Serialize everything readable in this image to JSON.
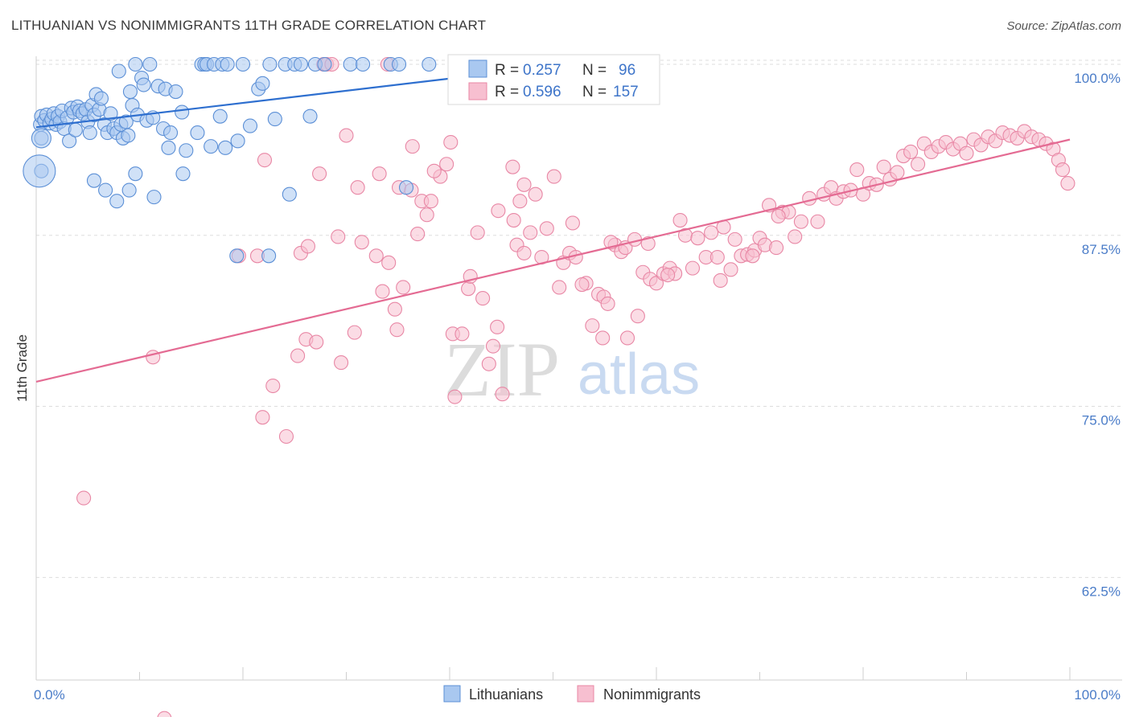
{
  "title": "LITHUANIAN VS NONIMMIGRANTS 11TH GRADE CORRELATION CHART",
  "source": "Source: ZipAtlas.com",
  "colors": {
    "blue_fill": "#a9c8f0",
    "blue_stroke": "#5b8fd6",
    "blue_line": "#2e6fcf",
    "pink_fill": "#f7bfd0",
    "pink_stroke": "#e887a5",
    "pink_line": "#e46b93",
    "tick_text": "#4a7cc8",
    "grid": "#dddddd"
  },
  "legend": {
    "rows": [
      {
        "r_label": "R =",
        "r_value": "0.257",
        "n_label": "N =",
        "n_value": "96",
        "series": "Lithuanians"
      },
      {
        "r_label": "R =",
        "r_value": "0.596",
        "n_label": "N =",
        "n_value": "157",
        "series": "Nonimmigrants"
      }
    ]
  },
  "watermark": {
    "zip": "ZIP",
    "atlas": "atlas"
  },
  "chart_data": {
    "type": "scatter",
    "title": "LITHUANIAN VS NONIMMIGRANTS 11TH GRADE CORRELATION CHART",
    "xlabel": "",
    "ylabel": "11th Grade",
    "xlim": [
      0,
      100
    ],
    "ylim": [
      55,
      100
    ],
    "x_tick_labels": [
      "0.0%",
      "100.0%"
    ],
    "y_ticks": [
      {
        "value": 100.0,
        "label": "100.0%"
      },
      {
        "value": 87.5,
        "label": "87.5%"
      },
      {
        "value": 75.0,
        "label": "75.0%"
      },
      {
        "value": 62.5,
        "label": "62.5%"
      }
    ],
    "grid": true,
    "legend_position": "top-center",
    "bottom_legend": [
      "Lithuanians",
      "Nonimmigrants"
    ],
    "series": [
      {
        "name": "Lithuanians",
        "r": 0.257,
        "n": 96,
        "trend": [
          [
            0,
            95.4
          ],
          [
            40.5,
            99.0
          ]
        ],
        "points": [
          [
            0.4,
            95.6
          ],
          [
            0.5,
            96.2
          ],
          [
            0.8,
            95.9
          ],
          [
            1.0,
            96.3
          ],
          [
            1.3,
            95.7
          ],
          [
            1.5,
            96.0
          ],
          [
            1.7,
            96.4
          ],
          [
            1.9,
            95.6
          ],
          [
            2.1,
            96.2
          ],
          [
            2.3,
            95.8
          ],
          [
            2.5,
            96.6
          ],
          [
            2.7,
            95.3
          ],
          [
            3.0,
            96.1
          ],
          [
            3.2,
            94.4
          ],
          [
            3.4,
            96.8
          ],
          [
            3.6,
            96.5
          ],
          [
            3.8,
            95.2
          ],
          [
            4.0,
            96.9
          ],
          [
            4.2,
            96.6
          ],
          [
            4.5,
            96.4
          ],
          [
            4.8,
            96.7
          ],
          [
            5.0,
            95.8
          ],
          [
            5.2,
            95.0
          ],
          [
            5.4,
            97.0
          ],
          [
            5.6,
            96.3
          ],
          [
            5.8,
            97.8
          ],
          [
            6.1,
            96.7
          ],
          [
            6.3,
            97.5
          ],
          [
            6.6,
            95.6
          ],
          [
            6.9,
            95.0
          ],
          [
            7.2,
            96.4
          ],
          [
            7.5,
            95.3
          ],
          [
            7.8,
            95.0
          ],
          [
            8.0,
            99.5
          ],
          [
            8.2,
            95.6
          ],
          [
            8.4,
            94.6
          ],
          [
            8.7,
            95.8
          ],
          [
            8.9,
            94.8
          ],
          [
            9.1,
            98.0
          ],
          [
            9.3,
            97.0
          ],
          [
            9.6,
            100
          ],
          [
            9.8,
            96.3
          ],
          [
            10.2,
            99.0
          ],
          [
            10.4,
            98.5
          ],
          [
            10.7,
            95.9
          ],
          [
            11.0,
            100
          ],
          [
            11.3,
            96.1
          ],
          [
            11.8,
            98.4
          ],
          [
            12.3,
            95.3
          ],
          [
            12.5,
            98.2
          ],
          [
            12.8,
            93.9
          ],
          [
            13.0,
            95.0
          ],
          [
            13.5,
            98.0
          ],
          [
            14.1,
            96.5
          ],
          [
            14.5,
            93.7
          ],
          [
            15.6,
            95.0
          ],
          [
            16.0,
            100
          ],
          [
            16.3,
            100
          ],
          [
            16.5,
            100
          ],
          [
            16.9,
            94.0
          ],
          [
            17.2,
            100
          ],
          [
            18.0,
            100
          ],
          [
            18.5,
            100
          ],
          [
            19.5,
            94.4
          ],
          [
            20.7,
            95.5
          ],
          [
            21.5,
            98.2
          ],
          [
            21.9,
            98.6
          ],
          [
            22.6,
            100
          ],
          [
            23.1,
            96.0
          ],
          [
            24.1,
            100
          ],
          [
            25.0,
            100
          ],
          [
            25.6,
            100
          ],
          [
            26.5,
            96.2
          ],
          [
            27.0,
            100
          ],
          [
            27.9,
            100
          ],
          [
            30.4,
            100
          ],
          [
            31.6,
            100
          ],
          [
            34.3,
            100
          ],
          [
            35.1,
            100
          ],
          [
            35.8,
            91.0
          ],
          [
            38.0,
            100
          ],
          [
            0.5,
            94.6
          ],
          [
            0.5,
            92.2
          ],
          [
            5.6,
            91.5
          ],
          [
            6.7,
            90.8
          ],
          [
            7.8,
            90.0
          ],
          [
            9.0,
            90.8
          ],
          [
            9.6,
            92.0
          ],
          [
            11.4,
            90.3
          ],
          [
            19.4,
            86.0
          ],
          [
            18.3,
            93.9
          ],
          [
            22.5,
            86.0
          ],
          [
            17.8,
            96.2
          ],
          [
            24.5,
            90.5
          ],
          [
            20.0,
            100
          ],
          [
            14.2,
            92.0
          ]
        ],
        "large_points": [
          [
            0.3,
            92.2
          ],
          [
            0.5,
            94.6
          ]
        ]
      },
      {
        "name": "Nonimmigrants",
        "r": 0.596,
        "n": 157,
        "trend": [
          [
            0,
            76.8
          ],
          [
            100,
            94.5
          ]
        ],
        "points": [
          [
            4.6,
            68.3
          ],
          [
            11.3,
            78.6
          ],
          [
            12.4,
            52.2
          ],
          [
            19.6,
            86.0
          ],
          [
            21.4,
            86.0
          ],
          [
            21.9,
            74.2
          ],
          [
            22.9,
            76.5
          ],
          [
            23.4,
            50.5
          ],
          [
            24.2,
            72.8
          ],
          [
            25.3,
            78.7
          ],
          [
            25.6,
            86.2
          ],
          [
            26.1,
            79.9
          ],
          [
            26.3,
            86.7
          ],
          [
            27.1,
            79.7
          ],
          [
            27.4,
            92.0
          ],
          [
            29.2,
            87.4
          ],
          [
            29.5,
            78.2
          ],
          [
            30.0,
            94.8
          ],
          [
            30.8,
            80.4
          ],
          [
            31.1,
            91.0
          ],
          [
            31.5,
            87.0
          ],
          [
            32.9,
            86.0
          ],
          [
            33.5,
            83.4
          ],
          [
            34.1,
            85.5
          ],
          [
            34.7,
            82.1
          ],
          [
            34.9,
            80.6
          ],
          [
            35.1,
            91.0
          ],
          [
            35.5,
            83.7
          ],
          [
            36.3,
            90.8
          ],
          [
            36.9,
            87.6
          ],
          [
            37.3,
            90.0
          ],
          [
            37.8,
            89.0
          ],
          [
            38.2,
            90.0
          ],
          [
            39.1,
            91.8
          ],
          [
            39.7,
            92.7
          ],
          [
            40.1,
            94.3
          ],
          [
            40.3,
            80.3
          ],
          [
            40.5,
            75.7
          ],
          [
            41.2,
            80.3
          ],
          [
            41.8,
            83.6
          ],
          [
            42.0,
            84.5
          ],
          [
            42.7,
            87.7
          ],
          [
            43.2,
            82.9
          ],
          [
            43.8,
            78.1
          ],
          [
            44.2,
            79.4
          ],
          [
            44.7,
            89.3
          ],
          [
            45.1,
            75.9
          ],
          [
            46.2,
            88.6
          ],
          [
            46.5,
            86.8
          ],
          [
            46.8,
            90.0
          ],
          [
            47.2,
            91.2
          ],
          [
            47.8,
            87.7
          ],
          [
            48.3,
            90.5
          ],
          [
            48.9,
            85.9
          ],
          [
            49.4,
            88.0
          ],
          [
            50.1,
            91.8
          ],
          [
            50.6,
            83.7
          ],
          [
            51.0,
            85.5
          ],
          [
            51.6,
            86.2
          ],
          [
            51.9,
            88.4
          ],
          [
            52.2,
            85.9
          ],
          [
            53.2,
            84.0
          ],
          [
            53.8,
            80.9
          ],
          [
            54.4,
            83.2
          ],
          [
            54.8,
            80.0
          ],
          [
            54.9,
            83.0
          ],
          [
            55.3,
            82.5
          ],
          [
            56.0,
            86.8
          ],
          [
            56.6,
            86.3
          ],
          [
            57.0,
            86.6
          ],
          [
            57.2,
            80.0
          ],
          [
            57.9,
            87.2
          ],
          [
            58.2,
            81.6
          ],
          [
            58.7,
            84.8
          ],
          [
            59.4,
            84.3
          ],
          [
            60.0,
            84.0
          ],
          [
            60.7,
            84.7
          ],
          [
            61.3,
            85.1
          ],
          [
            61.8,
            84.7
          ],
          [
            62.3,
            88.6
          ],
          [
            62.8,
            87.5
          ],
          [
            63.5,
            85.1
          ],
          [
            64.0,
            87.3
          ],
          [
            64.8,
            85.9
          ],
          [
            65.3,
            87.7
          ],
          [
            65.9,
            85.9
          ],
          [
            66.5,
            88.1
          ],
          [
            67.2,
            85.0
          ],
          [
            67.6,
            87.2
          ],
          [
            68.2,
            86.0
          ],
          [
            68.8,
            86.1
          ],
          [
            69.5,
            86.4
          ],
          [
            70.0,
            87.3
          ],
          [
            70.5,
            86.8
          ],
          [
            70.9,
            89.7
          ],
          [
            71.6,
            86.6
          ],
          [
            72.2,
            89.2
          ],
          [
            72.8,
            89.2
          ],
          [
            73.4,
            87.4
          ],
          [
            74.0,
            88.5
          ],
          [
            74.8,
            90.2
          ],
          [
            75.6,
            88.5
          ],
          [
            76.2,
            90.5
          ],
          [
            76.9,
            91.0
          ],
          [
            77.4,
            90.2
          ],
          [
            78.1,
            90.7
          ],
          [
            78.8,
            90.8
          ],
          [
            79.4,
            92.3
          ],
          [
            80.0,
            90.5
          ],
          [
            80.6,
            91.3
          ],
          [
            81.3,
            91.2
          ],
          [
            82.0,
            92.5
          ],
          [
            82.6,
            91.6
          ],
          [
            83.3,
            92.1
          ],
          [
            83.9,
            93.3
          ],
          [
            84.6,
            93.6
          ],
          [
            85.3,
            92.7
          ],
          [
            85.9,
            94.2
          ],
          [
            86.6,
            93.6
          ],
          [
            87.3,
            94.0
          ],
          [
            88.0,
            94.3
          ],
          [
            88.7,
            93.8
          ],
          [
            89.4,
            94.2
          ],
          [
            90.0,
            93.5
          ],
          [
            90.7,
            94.5
          ],
          [
            91.4,
            94.1
          ],
          [
            92.1,
            94.7
          ],
          [
            92.8,
            94.4
          ],
          [
            93.5,
            95.0
          ],
          [
            94.2,
            94.8
          ],
          [
            94.9,
            94.6
          ],
          [
            95.6,
            95.1
          ],
          [
            96.3,
            94.7
          ],
          [
            97.0,
            94.5
          ],
          [
            97.7,
            94.2
          ],
          [
            98.4,
            93.8
          ],
          [
            98.9,
            93.0
          ],
          [
            99.3,
            92.3
          ],
          [
            99.8,
            91.3
          ],
          [
            59.2,
            86.9
          ],
          [
            44.6,
            80.8
          ],
          [
            47.2,
            86.2
          ],
          [
            52.8,
            83.9
          ],
          [
            61.1,
            84.6
          ],
          [
            66.2,
            84.2
          ],
          [
            69.3,
            86.0
          ],
          [
            71.8,
            88.9
          ],
          [
            36.4,
            94.0
          ],
          [
            27.8,
            100
          ],
          [
            28.1,
            100
          ],
          [
            34.0,
            100
          ],
          [
            28.6,
            100
          ],
          [
            33.2,
            92.0
          ],
          [
            46.1,
            92.5
          ],
          [
            22.1,
            93.0
          ],
          [
            38.5,
            92.2
          ],
          [
            55.6,
            87.0
          ]
        ]
      }
    ]
  }
}
